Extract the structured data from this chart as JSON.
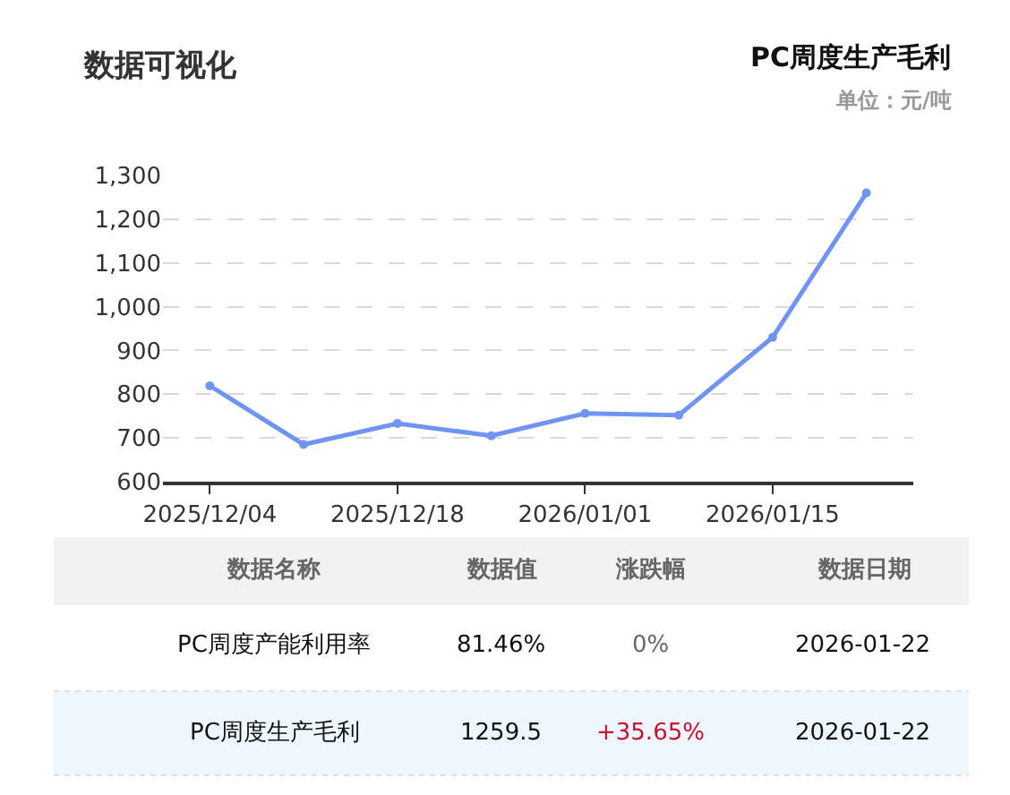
{
  "chart_data": [
    {
      "type": "line",
      "title": "PC周度生产毛利",
      "subtitle": "单位：元/吨",
      "annotations": [
        "数据可视化"
      ],
      "categories": [
        "2025/12/04",
        null,
        "2025/12/18",
        null,
        "2026/01/01",
        null,
        "2026/01/15",
        null
      ],
      "series": [
        {
          "color": "#6f94f4",
          "values": [
            819,
            685,
            733,
            705,
            756,
            752,
            930,
            1260
          ]
        }
      ],
      "ylim": [
        600,
        1300
      ],
      "yticks": [
        {
          "value": 600,
          "label": "600"
        },
        {
          "value": 700,
          "label": "700"
        },
        {
          "value": 800,
          "label": "800"
        },
        {
          "value": 900,
          "label": "900"
        },
        {
          "value": 1000,
          "label": "1,000"
        },
        {
          "value": 1100,
          "label": "1,100"
        },
        {
          "value": 1200,
          "label": "1,200"
        },
        {
          "value": 1300,
          "label": "1,300"
        }
      ],
      "grid": "y",
      "marker": "circle",
      "line_style": "solid"
    },
    {
      "type": "other",
      "annotations": [
        "数据名称",
        "数据值",
        "涨跌幅",
        "数据日期",
        "PC周度产能利用率",
        "81.46%",
        "0%",
        "2026-01-22",
        "PC周度生产毛利",
        "1259.5",
        "+35.65%",
        "2026-01-22"
      ]
    }
  ]
}
